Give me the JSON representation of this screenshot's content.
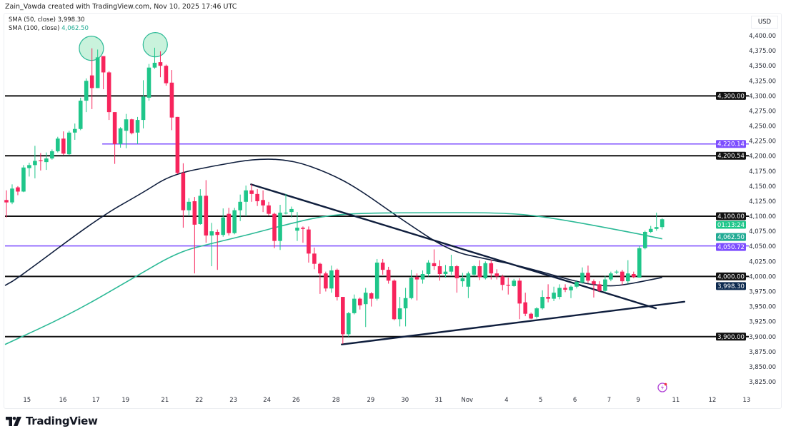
{
  "credit": "Zain_Vawda created with TradingView.com, Nov 10, 2025 17:46 UTC",
  "legend": [
    {
      "label": "SMA (50, close)",
      "value": "3,998.30",
      "color": "#0f1e3d"
    },
    {
      "label": "SMA (100, close)",
      "value": "4,062.50",
      "color": "#22ab94"
    }
  ],
  "currency": "USD",
  "brand": "TradingView",
  "colors": {
    "up": "#1fc68a",
    "down": "#f7245c",
    "sma50": "#0f1e3d",
    "sma100": "#2bb996",
    "level_black": "#111111",
    "level_purple": "#7c4dff",
    "trendline": "#0f1e3d",
    "circle_fill": "#bff0d6",
    "circle_stroke": "#2bb996",
    "alert_icon": "#b041d6"
  },
  "chart_data": {
    "type": "candlestick",
    "ylim": [
      3810,
      4415
    ],
    "grid": false,
    "y_ticks": [
      3825,
      3850,
      3875,
      3900,
      3925,
      3950,
      3975,
      4000,
      4025,
      4050,
      4075,
      4100,
      4125,
      4150,
      4175,
      4200,
      4225,
      4250,
      4275,
      4300,
      4325,
      4350,
      4375,
      4400
    ],
    "y_tick_labels": [
      "3,825.00",
      "3,850.00",
      "3,875.00",
      "3,900.00",
      "3,925.00",
      "3,950.00",
      "3,975.00",
      "4,000.00",
      "4,025.00",
      "4,050.00",
      "4,075.00",
      "4,100.00",
      "4,125.00",
      "4,150.00",
      "4,175.00",
      "4,200.00",
      "4,225.00",
      "4,250.00",
      "4,275.00",
      "4,300.00",
      "4,325.00",
      "4,350.00",
      "4,375.00",
      "4,400.00"
    ],
    "x_ticks": [
      {
        "label": "15",
        "bar": 3.6
      },
      {
        "label": "16",
        "bar": 9.9
      },
      {
        "label": "17",
        "bar": 15.7
      },
      {
        "label": "19",
        "bar": 20.9
      },
      {
        "label": "21",
        "bar": 27.8
      },
      {
        "label": "22",
        "bar": 33.8
      },
      {
        "label": "23",
        "bar": 39.8
      },
      {
        "label": "24",
        "bar": 45.7
      },
      {
        "label": "26",
        "bar": 50.8
      },
      {
        "label": "28",
        "bar": 57.8
      },
      {
        "label": "29",
        "bar": 63.9
      },
      {
        "label": "30",
        "bar": 69.9
      },
      {
        "label": "31",
        "bar": 75.8
      },
      {
        "label": "Nov",
        "bar": 80.8
      },
      {
        "label": "4",
        "bar": 87.7
      },
      {
        "label": "5",
        "bar": 93.7
      },
      {
        "label": "6",
        "bar": 99.7
      },
      {
        "label": "7",
        "bar": 105.7
      },
      {
        "label": "9",
        "bar": 110.8
      },
      {
        "label": "11",
        "bar": 117.4
      },
      {
        "label": "12",
        "bar": 123.8
      },
      {
        "label": "13",
        "bar": 129.8
      }
    ],
    "ohlc": [
      [
        4127,
        4143,
        4098,
        4123
      ],
      [
        4123,
        4153,
        4120,
        4146
      ],
      [
        4148,
        4150,
        4135,
        4141
      ],
      [
        4141,
        4185,
        4140,
        4181
      ],
      [
        4180,
        4189,
        4166,
        4185
      ],
      [
        4185,
        4217,
        4163,
        4192
      ],
      [
        4193,
        4205,
        4176,
        4192
      ],
      [
        4190,
        4206,
        4177,
        4196
      ],
      [
        4196,
        4211,
        4194,
        4208
      ],
      [
        4208,
        4232,
        4206,
        4229
      ],
      [
        4229,
        4241,
        4202,
        4204
      ],
      [
        4203,
        4242,
        4202,
        4239
      ],
      [
        4239,
        4254,
        4227,
        4245
      ],
      [
        4245,
        4297,
        4243,
        4292
      ],
      [
        4292,
        4329,
        4273,
        4325
      ],
      [
        4334,
        4379,
        4278,
        4313
      ],
      [
        4313,
        4377,
        4313,
        4364
      ],
      [
        4366,
        4366,
        4311,
        4339
      ],
      [
        4339,
        4341,
        4260,
        4273
      ],
      [
        4273,
        4273,
        4187,
        4220
      ],
      [
        4220,
        4248,
        4214,
        4246
      ],
      [
        4242,
        4270,
        4213,
        4261
      ],
      [
        4261,
        4262,
        4236,
        4238
      ],
      [
        4239,
        4265,
        4220,
        4260
      ],
      [
        4260,
        4326,
        4246,
        4299
      ],
      [
        4297,
        4353,
        4292,
        4347
      ],
      [
        4347,
        4380,
        4345,
        4355
      ],
      [
        4356,
        4374,
        4331,
        4350
      ],
      [
        4350,
        4352,
        4317,
        4321
      ],
      [
        4322,
        4343,
        4243,
        4264
      ],
      [
        4265,
        4265,
        4170,
        4172
      ],
      [
        4172,
        4188,
        4081,
        4110
      ],
      [
        4110,
        4130,
        4100,
        4124
      ],
      [
        4125,
        4132,
        4005,
        4086
      ],
      [
        4087,
        4145,
        4086,
        4134
      ],
      [
        4134,
        4160,
        4056,
        4068
      ],
      [
        4068,
        4089,
        4017,
        4075
      ],
      [
        4074,
        4078,
        4011,
        4069
      ],
      [
        4069,
        4113,
        4066,
        4098
      ],
      [
        4104,
        4114,
        4068,
        4072
      ],
      [
        4072,
        4114,
        4070,
        4110
      ],
      [
        4110,
        4136,
        4092,
        4124
      ],
      [
        4124,
        4151,
        4100,
        4143
      ],
      [
        4143,
        4153,
        4124,
        4137
      ],
      [
        4137,
        4145,
        4117,
        4125
      ],
      [
        4127,
        4143,
        4107,
        4118
      ],
      [
        4118,
        4124,
        4101,
        4104
      ],
      [
        4104,
        4106,
        4047,
        4059
      ],
      [
        4059,
        4119,
        4044,
        4106
      ],
      [
        4105,
        4137,
        4103,
        4106
      ],
      [
        4107,
        4116,
        4098,
        4112
      ],
      [
        4076,
        4107,
        4059,
        4081
      ],
      [
        4081,
        4083,
        4056,
        4079
      ],
      [
        4078,
        4083,
        4023,
        4038
      ],
      [
        4038,
        4048,
        4012,
        4021
      ],
      [
        4021,
        4023,
        3971,
        4005
      ],
      [
        4005,
        4008,
        3975,
        3980
      ],
      [
        3980,
        4018,
        3973,
        4010
      ],
      [
        4011,
        4013,
        3960,
        3966
      ],
      [
        3966,
        3966,
        3888,
        3904
      ],
      [
        3904,
        3941,
        3900,
        3939
      ],
      [
        3939,
        3970,
        3937,
        3963
      ],
      [
        3963,
        3965,
        3945,
        3952
      ],
      [
        3954,
        3981,
        3916,
        3973
      ],
      [
        3972,
        3974,
        3950,
        3963
      ],
      [
        3963,
        4029,
        3960,
        4023
      ],
      [
        4023,
        4029,
        4003,
        4011
      ],
      [
        4011,
        4016,
        3988,
        3993
      ],
      [
        3993,
        3995,
        3927,
        3929
      ],
      [
        3929,
        3966,
        3917,
        3947
      ],
      [
        3947,
        3981,
        3917,
        3964
      ],
      [
        3964,
        4011,
        3962,
        3998
      ],
      [
        3999,
        4005,
        3960,
        3995
      ],
      [
        3995,
        4010,
        3988,
        4004
      ],
      [
        4004,
        4027,
        4000,
        4023
      ],
      [
        4022,
        4045,
        4011,
        4017
      ],
      [
        4017,
        4027,
        3993,
        4004
      ],
      [
        4004,
        4019,
        3998,
        4008
      ],
      [
        4008,
        4036,
        4003,
        4017
      ],
      [
        4017,
        4019,
        3973,
        3997
      ],
      [
        3992,
        4006,
        3983,
        3997
      ],
      [
        3983,
        4008,
        3964,
        4005
      ],
      [
        4003,
        4019,
        4001,
        4017
      ],
      [
        4017,
        4027,
        3994,
        3999
      ],
      [
        3997,
        4025,
        3995,
        4022
      ],
      [
        4022,
        4028,
        3995,
        4005
      ],
      [
        4005,
        4012,
        3995,
        4000
      ],
      [
        4000,
        4003,
        3977,
        3986
      ],
      [
        3986,
        3998,
        3970,
        3985
      ],
      [
        3984,
        3996,
        3983,
        3993
      ],
      [
        3993,
        3997,
        3929,
        3955
      ],
      [
        3957,
        3973,
        3934,
        3938
      ],
      [
        3938,
        3940,
        3929,
        3930
      ],
      [
        3933,
        3949,
        3930,
        3947
      ],
      [
        3947,
        3977,
        3945,
        3966
      ],
      [
        3966,
        3987,
        3957,
        3963
      ],
      [
        3963,
        3983,
        3959,
        3973
      ],
      [
        3966,
        3987,
        3962,
        3981
      ],
      [
        3981,
        3987,
        3974,
        3978
      ],
      [
        3977,
        3985,
        3964,
        3983
      ],
      [
        3983,
        3994,
        3980,
        3991
      ],
      [
        3990,
        4015,
        3988,
        4006
      ],
      [
        4006,
        4018,
        3989,
        3993
      ],
      [
        3992,
        3995,
        3965,
        3987
      ],
      [
        3987,
        3992,
        3974,
        3976
      ],
      [
        3976,
        4001,
        3974,
        3995
      ],
      [
        3995,
        4008,
        3992,
        4005
      ],
      [
        4007,
        4011,
        4004,
        4008
      ],
      [
        4008,
        4011,
        3986,
        3992
      ],
      [
        3992,
        4027,
        3988,
        4005
      ],
      [
        4004,
        4008,
        3997,
        3999
      ],
      [
        3998,
        4051,
        3998,
        4047
      ],
      [
        4047,
        4076,
        4045,
        4074
      ],
      [
        4074,
        4084,
        4072,
        4079
      ],
      [
        4079,
        4106,
        4076,
        4082
      ],
      [
        4082,
        4097,
        4078,
        4095
      ]
    ],
    "series": [
      {
        "name": "SMA (50, close)",
        "points": [
          [
            -0.25,
            3985
          ],
          [
            2.0,
            3997
          ],
          [
            16.4,
            4099
          ],
          [
            23.9,
            4139
          ],
          [
            28.9,
            4169
          ],
          [
            36.5,
            4184
          ],
          [
            44.0,
            4196
          ],
          [
            50.3,
            4193
          ],
          [
            56.5,
            4172
          ],
          [
            61.5,
            4147
          ],
          [
            69.4,
            4094
          ],
          [
            77.8,
            4042
          ],
          [
            84.1,
            4029
          ],
          [
            90.4,
            4017
          ],
          [
            100.8,
            3989
          ],
          [
            105.0,
            3984
          ],
          [
            107.9,
            3985
          ],
          [
            115.0,
            3998.3
          ]
        ]
      },
      {
        "name": "SMA (100, close)",
        "points": [
          [
            -0.25,
            3887
          ],
          [
            11.4,
            3938
          ],
          [
            22.7,
            4000
          ],
          [
            30.2,
            4041
          ],
          [
            36.5,
            4056
          ],
          [
            42.7,
            4070
          ],
          [
            49.0,
            4086
          ],
          [
            55.3,
            4100
          ],
          [
            61.5,
            4105
          ],
          [
            71.6,
            4106
          ],
          [
            88.2,
            4106
          ],
          [
            96.6,
            4096
          ],
          [
            109.1,
            4074
          ],
          [
            115.0,
            4062.5
          ]
        ]
      }
    ],
    "levels": [
      {
        "price": 4300.0,
        "label": "4,300.00",
        "color": "black",
        "from_bar": -0.3
      },
      {
        "price": 4220.14,
        "label": "4,220.14",
        "color": "purple",
        "from_bar": 16.8
      },
      {
        "price": 4200.54,
        "label": "4,200.54",
        "color": "black",
        "from_bar": -0.3
      },
      {
        "price": 4100.0,
        "label": "4,100.00",
        "color": "black",
        "from_bar": -0.3
      },
      {
        "price": 4050.72,
        "label": "4,050.72",
        "color": "purple",
        "from_bar": -0.3
      },
      {
        "price": 4000.0,
        "label": "4,000.00",
        "color": "black",
        "from_bar": -0.3
      },
      {
        "price": 3900.0,
        "label": "3,900.00",
        "color": "black",
        "from_bar": -0.3
      }
    ],
    "trendlines": [
      {
        "from": [
          42.9,
          4153
        ],
        "to": [
          113.9,
          3947
        ]
      },
      {
        "from": [
          58.8,
          3887
        ],
        "to": [
          118.9,
          3958
        ]
      }
    ],
    "highlights": [
      {
        "bar": 14.9,
        "price": 4379
      },
      {
        "bar": 26.1,
        "price": 4385
      }
    ],
    "price_badges": [
      {
        "price": 4062.5,
        "label": "4,062.50",
        "color": "#22ab94"
      },
      {
        "price": 3998.3,
        "label": "3,998.30",
        "color": "#0d2a4f"
      }
    ],
    "countdown": {
      "label": "01:13:24",
      "color": "#1fc68a"
    }
  }
}
